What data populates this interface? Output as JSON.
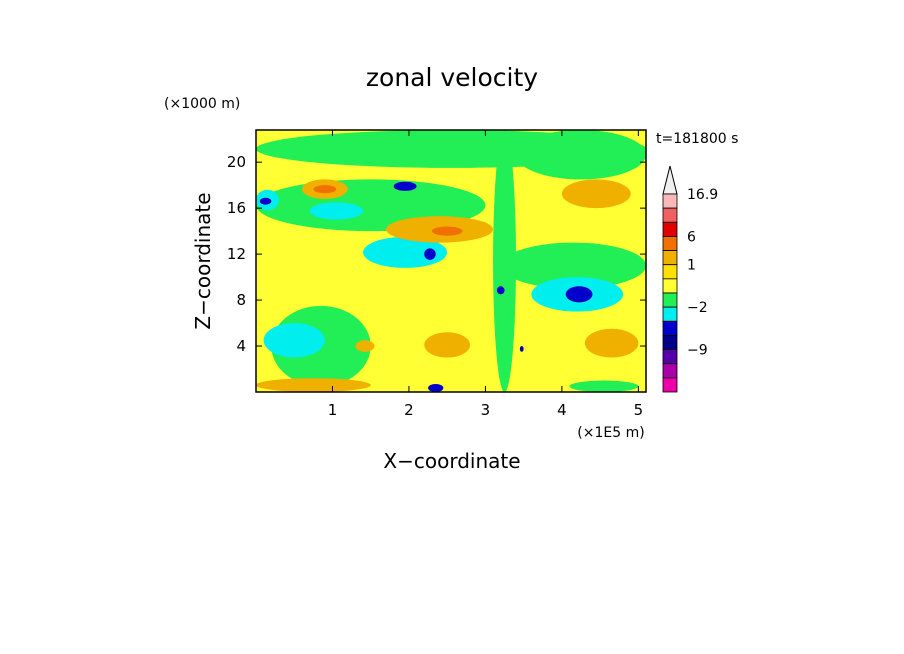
{
  "chart_data": {
    "type": "heatmap",
    "title": "zonal velocity",
    "time_label": "t=181800 s",
    "xlabel": "X−coordinate",
    "ylabel": "Z−coordinate",
    "x_unit": "(×1E5 m)",
    "y_unit": "(×1000 m)",
    "xlim": [
      0,
      5.1
    ],
    "ylim": [
      0,
      22.8
    ],
    "x_ticks": [
      {
        "value": 1,
        "label": "1"
      },
      {
        "value": 2,
        "label": "2"
      },
      {
        "value": 3,
        "label": "3"
      },
      {
        "value": 4,
        "label": "4"
      },
      {
        "value": 5,
        "label": "5"
      }
    ],
    "y_ticks": [
      {
        "value": 4,
        "label": "4"
      },
      {
        "value": 8,
        "label": "8"
      },
      {
        "value": 12,
        "label": "12"
      },
      {
        "value": 16,
        "label": "16"
      },
      {
        "value": 20,
        "label": "20"
      }
    ],
    "colorbar": {
      "levels": [
        {
          "color": "#f0f0f0",
          "label": ""
        },
        {
          "color": "#f8b8b8",
          "label": "16.9"
        },
        {
          "color": "#f06060",
          "label": ""
        },
        {
          "color": "#e00000",
          "label": ""
        },
        {
          "color": "#f07000",
          "label": "6"
        },
        {
          "color": "#f0b000",
          "label": ""
        },
        {
          "color": "#ffe000",
          "label": "1"
        },
        {
          "color": "#ffff33",
          "label": ""
        },
        {
          "color": "#22ee55",
          "label": ""
        },
        {
          "color": "#00eeee",
          "label": "−2"
        },
        {
          "color": "#0000cc",
          "label": ""
        },
        {
          "color": "#000088",
          "label": ""
        },
        {
          "color": "#5500aa",
          "label": "−9"
        },
        {
          "color": "#aa00aa",
          "label": ""
        },
        {
          "color": "#ee00aa",
          "label": ""
        }
      ]
    },
    "regions": [
      {
        "color": "#ffff33",
        "x": [
          0,
          5.1
        ],
        "z": [
          0,
          22.8
        ]
      },
      {
        "color": "#22ee55",
        "x": [
          0.2,
          1.5
        ],
        "z": [
          0.5,
          7.5
        ]
      },
      {
        "color": "#00eeee",
        "x": [
          0.1,
          0.9
        ],
        "z": [
          3,
          6
        ]
      },
      {
        "color": "#22ee55",
        "x": [
          0,
          3.0
        ],
        "z": [
          14,
          18.5
        ]
      },
      {
        "color": "#00eeee",
        "x": [
          0.7,
          1.4
        ],
        "z": [
          15,
          16.5
        ]
      },
      {
        "color": "#00eeee",
        "x": [
          1.4,
          2.5
        ],
        "z": [
          10.8,
          13.5
        ]
      },
      {
        "color": "#0000cc",
        "x": [
          2.2,
          2.35
        ],
        "z": [
          11.5,
          12.5
        ]
      },
      {
        "color": "#22ee55",
        "x": [
          3.2,
          5.1
        ],
        "z": [
          9,
          13
        ]
      },
      {
        "color": "#00eeee",
        "x": [
          3.6,
          4.8
        ],
        "z": [
          7,
          10
        ]
      },
      {
        "color": "#0000cc",
        "x": [
          4.05,
          4.4
        ],
        "z": [
          7.8,
          9.2
        ]
      },
      {
        "color": "#22ee55",
        "x": [
          3.4,
          5.1
        ],
        "z": [
          18.5,
          22.8
        ]
      },
      {
        "color": "#22ee55",
        "x": [
          0,
          5.1
        ],
        "z": [
          19.5,
          22.8
        ]
      },
      {
        "color": "#f0b000",
        "x": [
          0.6,
          1.2
        ],
        "z": [
          16.8,
          18.5
        ]
      },
      {
        "color": "#f07000",
        "x": [
          0.75,
          1.05
        ],
        "z": [
          17.3,
          18.0
        ]
      },
      {
        "color": "#f0b000",
        "x": [
          1.7,
          3.1
        ],
        "z": [
          13.0,
          15.3
        ]
      },
      {
        "color": "#f07000",
        "x": [
          2.3,
          2.7
        ],
        "z": [
          13.6,
          14.4
        ]
      },
      {
        "color": "#0000cc",
        "x": [
          1.8,
          2.1
        ],
        "z": [
          17.5,
          18.3
        ]
      },
      {
        "color": "#f0b000",
        "x": [
          4.0,
          4.9
        ],
        "z": [
          16.0,
          18.5
        ]
      },
      {
        "color": "#f0b000",
        "x": [
          2.2,
          2.8
        ],
        "z": [
          3.0,
          5.2
        ]
      },
      {
        "color": "#f0b000",
        "x": [
          1.3,
          1.55
        ],
        "z": [
          3.5,
          4.5
        ]
      },
      {
        "color": "#f0b000",
        "x": [
          0,
          1.5
        ],
        "z": [
          0,
          1.2
        ]
      },
      {
        "color": "#22ee55",
        "x": [
          4.1,
          5.0
        ],
        "z": [
          0,
          1.0
        ]
      },
      {
        "color": "#0000cc",
        "x": [
          2.25,
          2.45
        ],
        "z": [
          0,
          0.7
        ]
      },
      {
        "color": "#f0b000",
        "x": [
          4.3,
          5.0
        ],
        "z": [
          3.0,
          5.5
        ]
      },
      {
        "color": "#00eeee",
        "x": [
          0,
          0.3
        ],
        "z": [
          15.8,
          17.6
        ]
      },
      {
        "color": "#0000cc",
        "x": [
          0.05,
          0.2
        ],
        "z": [
          16.3,
          16.9
        ]
      },
      {
        "color": "#22ee55",
        "x": [
          3.1,
          3.4
        ],
        "z": [
          0,
          22.8
        ]
      },
      {
        "color": "#0000cc",
        "x": [
          3.15,
          3.25
        ],
        "z": [
          8.5,
          9.2
        ]
      },
      {
        "color": "#0000cc",
        "x": [
          3.45,
          3.5
        ],
        "z": [
          3.5,
          4.0
        ]
      }
    ]
  }
}
